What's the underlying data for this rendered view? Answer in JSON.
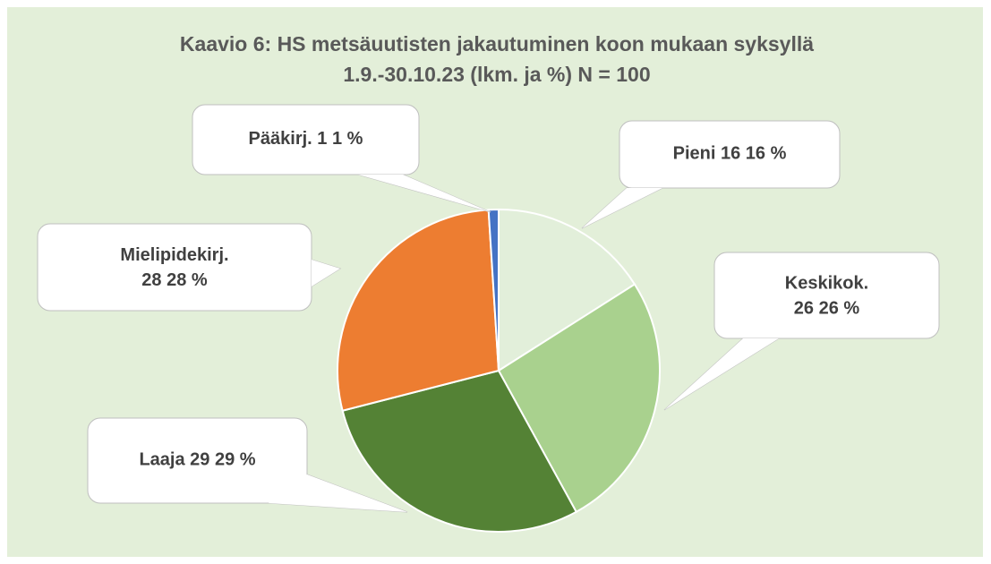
{
  "chart_data": {
    "type": "pie",
    "title": "Kaavio 6: HS metsäuutisten jakautuminen koon mukaan syksyllä 1.9.-30.10.23 (lkm. ja %) N = 100",
    "categories": [
      "Pieni",
      "Keskikok.",
      "Laaja",
      "Mielipidekirj.",
      "Pääkirj."
    ],
    "values": [
      16,
      26,
      29,
      28,
      1
    ],
    "value_labels": [
      "16  16 %",
      "26  26 %",
      "29 29 %",
      "28  28 %",
      "1  1 %"
    ],
    "colors": [
      "#e2efda",
      "#a9d18e",
      "#548235",
      "#ed7d31",
      "#4472c4"
    ]
  }
}
